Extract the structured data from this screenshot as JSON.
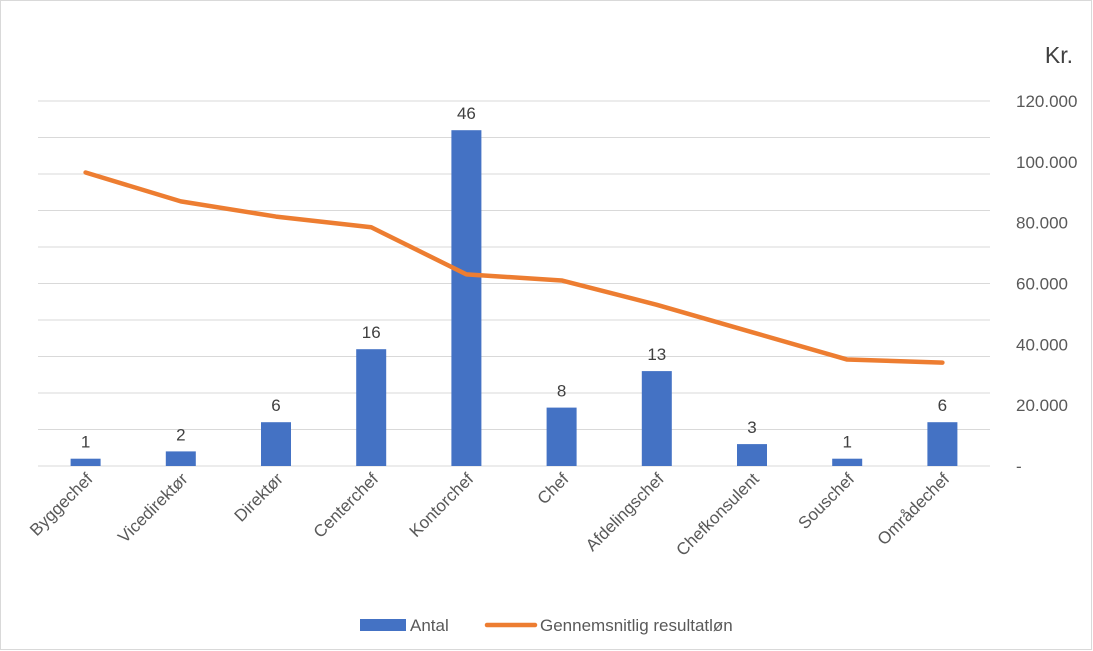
{
  "chart_data": {
    "type": "bar+line",
    "categories": [
      "Byggechef",
      "Vicedirektør",
      "Direktør",
      "Centerchef",
      "Kontorchef",
      "Chef",
      "Afdelingschef",
      "Chefkonsulent",
      "Souschef",
      "Områdechef"
    ],
    "series": [
      {
        "name": "Antal",
        "type": "bar",
        "axis": "left",
        "color": "#4472C4",
        "values": [
          1,
          2,
          6,
          16,
          46,
          8,
          13,
          3,
          1,
          6
        ]
      },
      {
        "name": "Gennemsnitlig resultatløn",
        "type": "line",
        "axis": "right",
        "color": "#ED7D31",
        "values": [
          96500,
          87000,
          82000,
          78500,
          63000,
          61000,
          53000,
          44000,
          35000,
          34000
        ]
      }
    ],
    "y_left": {
      "range": [
        0,
        50
      ]
    },
    "y_right": {
      "range": [
        0,
        120000
      ],
      "unit_label": "Kr.",
      "tick_labels": [
        "-",
        "20.000",
        "40.000",
        "60.000",
        "80.000",
        "100.000",
        "120.000"
      ]
    },
    "grid": true,
    "legend": "bottom"
  }
}
